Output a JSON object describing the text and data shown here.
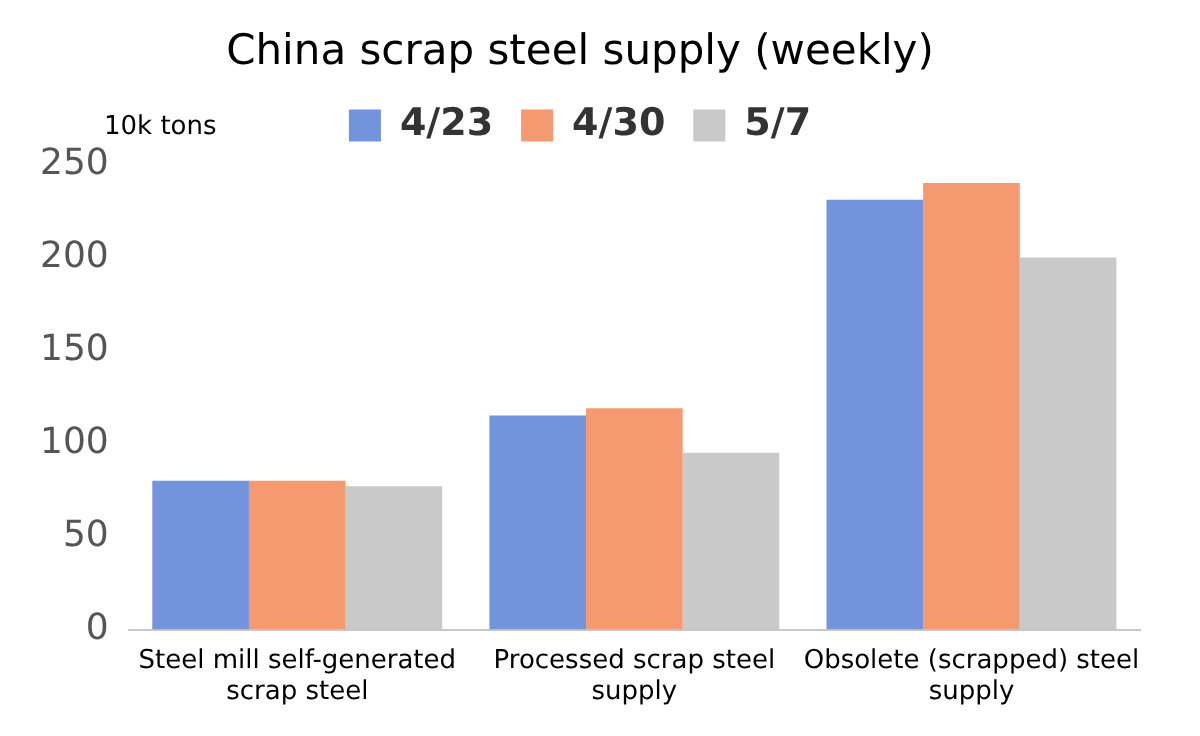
{
  "chart_data": {
    "type": "bar",
    "title": "China scrap steel supply (weekly)",
    "ylabel": "10k tons",
    "categories": [
      "Steel mill self-generated scrap steel",
      "Processed scrap steel supply",
      "Obsolete (scrapped) steel supply"
    ],
    "series": [
      {
        "name": "4/23",
        "color": "#7393dd",
        "values": [
          80,
          115,
          231
        ]
      },
      {
        "name": "4/30",
        "color": "#f59a70",
        "values": [
          80,
          119,
          240
        ]
      },
      {
        "name": "5/7",
        "color": "#c9c9c9",
        "values": [
          77,
          95,
          200
        ]
      }
    ],
    "ylim": [
      0,
      250
    ],
    "yticks": [
      0,
      50,
      100,
      150,
      200,
      250
    ],
    "grid": false,
    "legend": "top"
  }
}
